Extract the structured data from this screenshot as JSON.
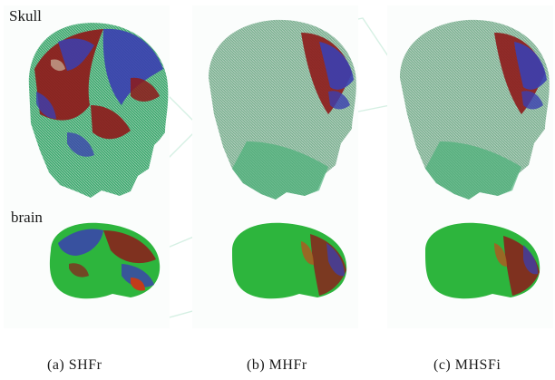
{
  "row_labels": {
    "top": "Skull",
    "bottom": "brain"
  },
  "captions": [
    "(a) SHFr",
    "(b) MHFr",
    "(c) MHSFi"
  ],
  "colors": {
    "green": "#3fae72",
    "grey_green": "#8fb8a2",
    "red": "#8e1a1a",
    "blue": "#3b3fb0",
    "bright_green": "#2db53d",
    "watermark": "#cfeee0"
  }
}
